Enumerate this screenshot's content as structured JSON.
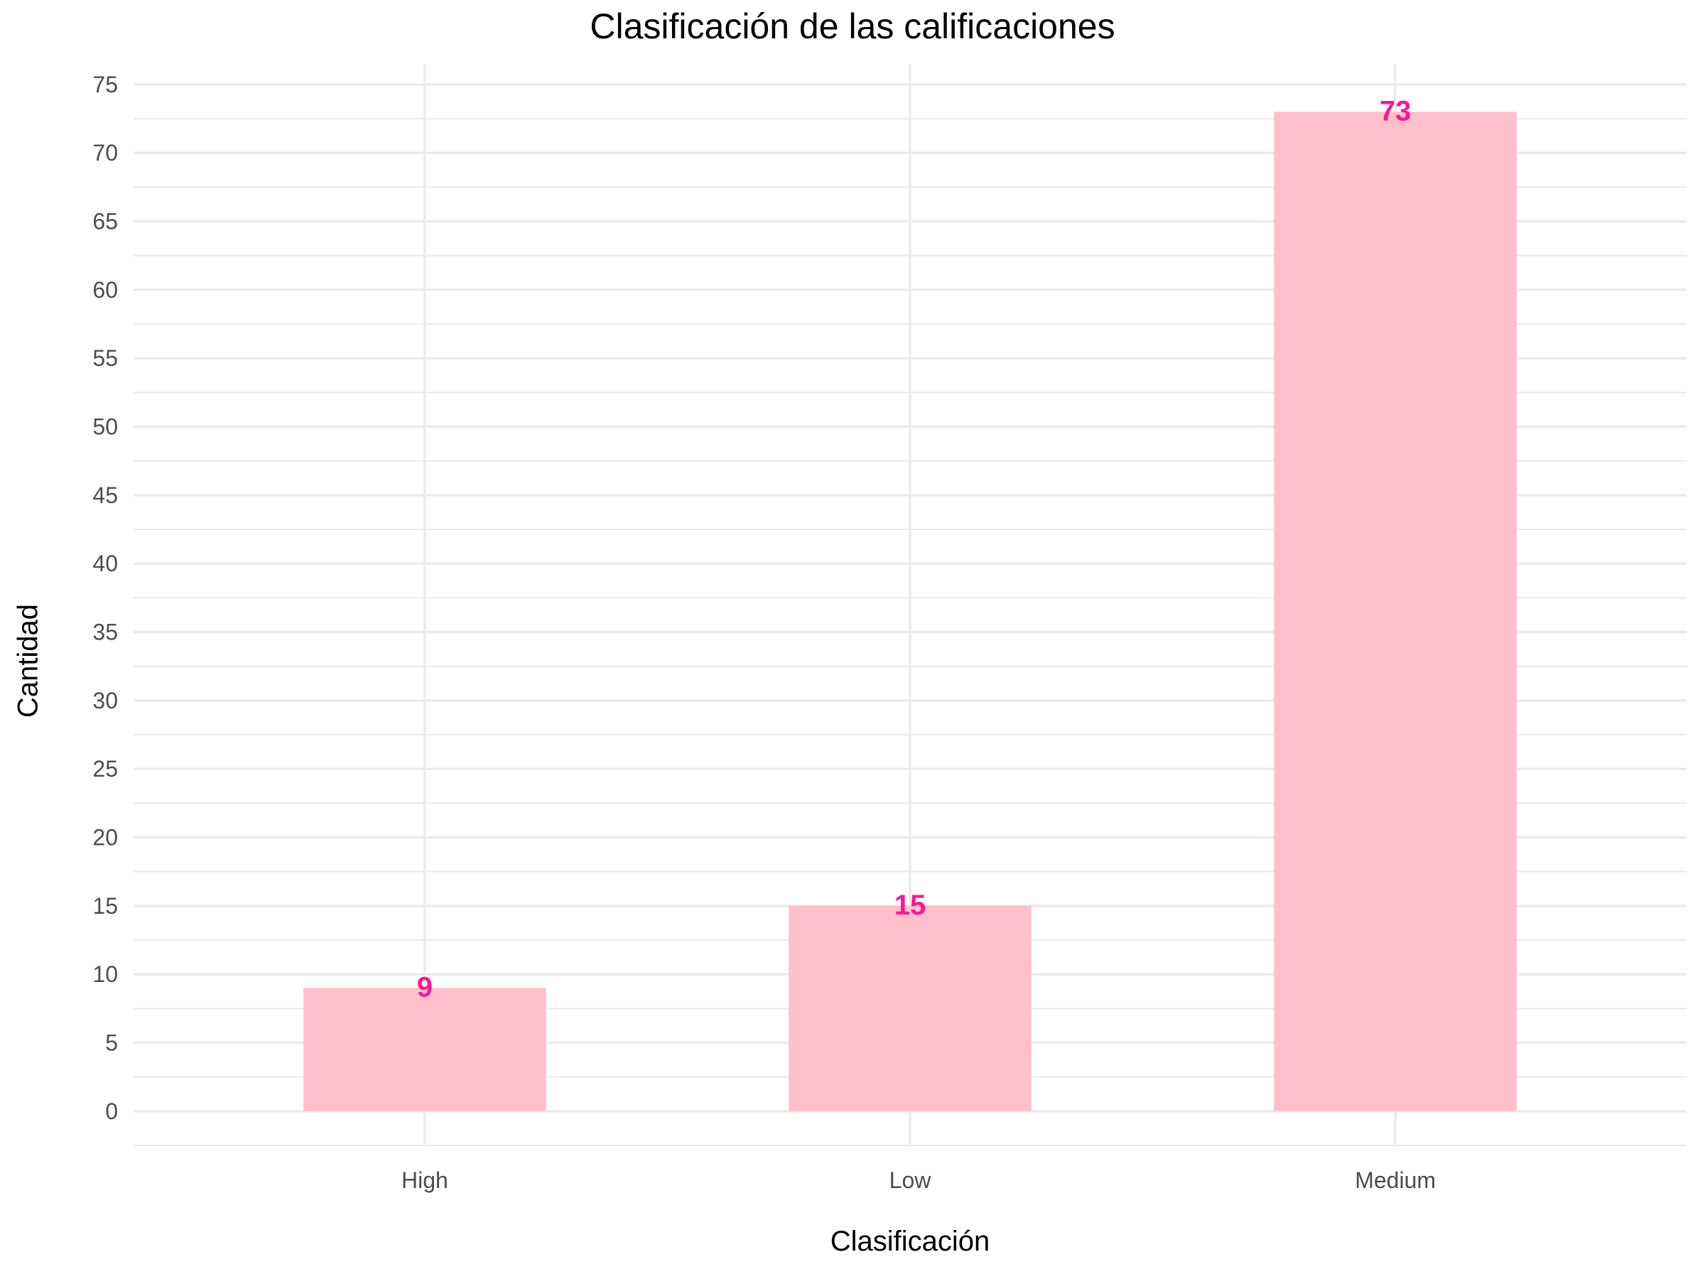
{
  "chart_data": {
    "type": "bar",
    "title": "Clasificación de las calificaciones",
    "xlabel": "Clasificación",
    "ylabel": "Cantidad",
    "categories": [
      "High",
      "Low",
      "Medium"
    ],
    "values": [
      9,
      15,
      73
    ],
    "ylim": [
      -2.5,
      76.5
    ],
    "yticks": [
      0,
      5,
      10,
      15,
      20,
      25,
      30,
      35,
      40,
      45,
      50,
      55,
      60,
      65,
      70,
      75
    ],
    "grid": true,
    "legend": "none",
    "colors": {
      "bar": "#ffc0cb",
      "label": "#ff1493",
      "grid": "#ebebeb",
      "tick_text": "#4d4d4d"
    }
  }
}
